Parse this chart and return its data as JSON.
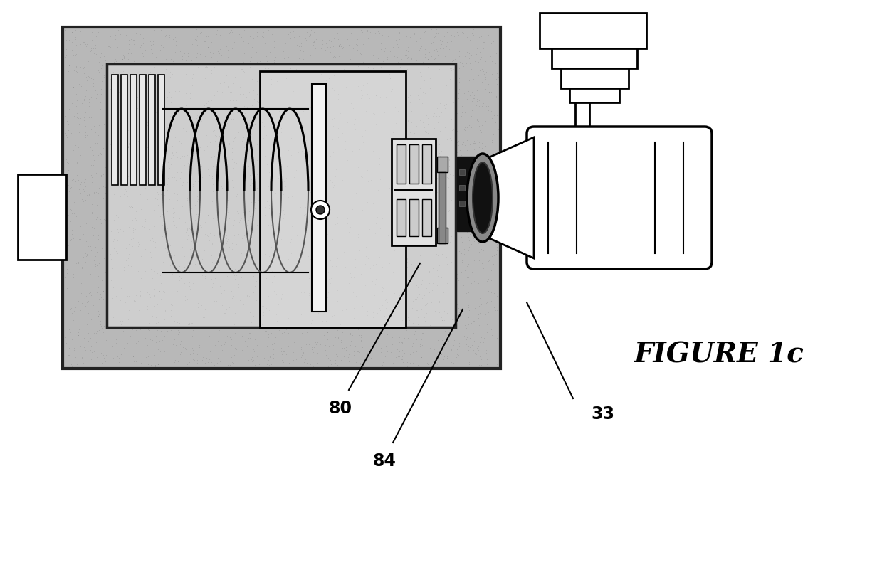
{
  "bg_color": "#ffffff",
  "figure_label": "FIGURE 1c",
  "label_80": "80",
  "label_84": "84",
  "label_33": "33",
  "stipple_color": "#888888",
  "stipple_outer": "#777777",
  "inner_box_color": "#c8c8c8",
  "outer_box_color": "#aaaaaa"
}
